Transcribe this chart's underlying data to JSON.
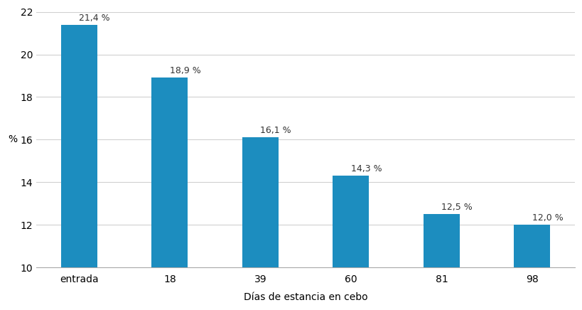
{
  "categories": [
    "entrada",
    "18",
    "39",
    "60",
    "81",
    "98"
  ],
  "values": [
    21.4,
    18.9,
    16.1,
    14.3,
    12.5,
    12.0
  ],
  "labels": [
    "21,4 %",
    "18,9 %",
    "16,1 %",
    "14,3 %",
    "12,5 %",
    "12,0 %"
  ],
  "bar_color": "#1c8dbf",
  "xlabel": "Días de estancia en cebo",
  "ylabel": "%",
  "ylim": [
    10,
    22
  ],
  "yticks": [
    10,
    12,
    14,
    16,
    18,
    20,
    22
  ],
  "background_color": "#ffffff",
  "grid_color": "#d0d0d0",
  "label_fontsize": 9,
  "axis_label_fontsize": 10,
  "tick_fontsize": 10,
  "bar_width": 0.4
}
